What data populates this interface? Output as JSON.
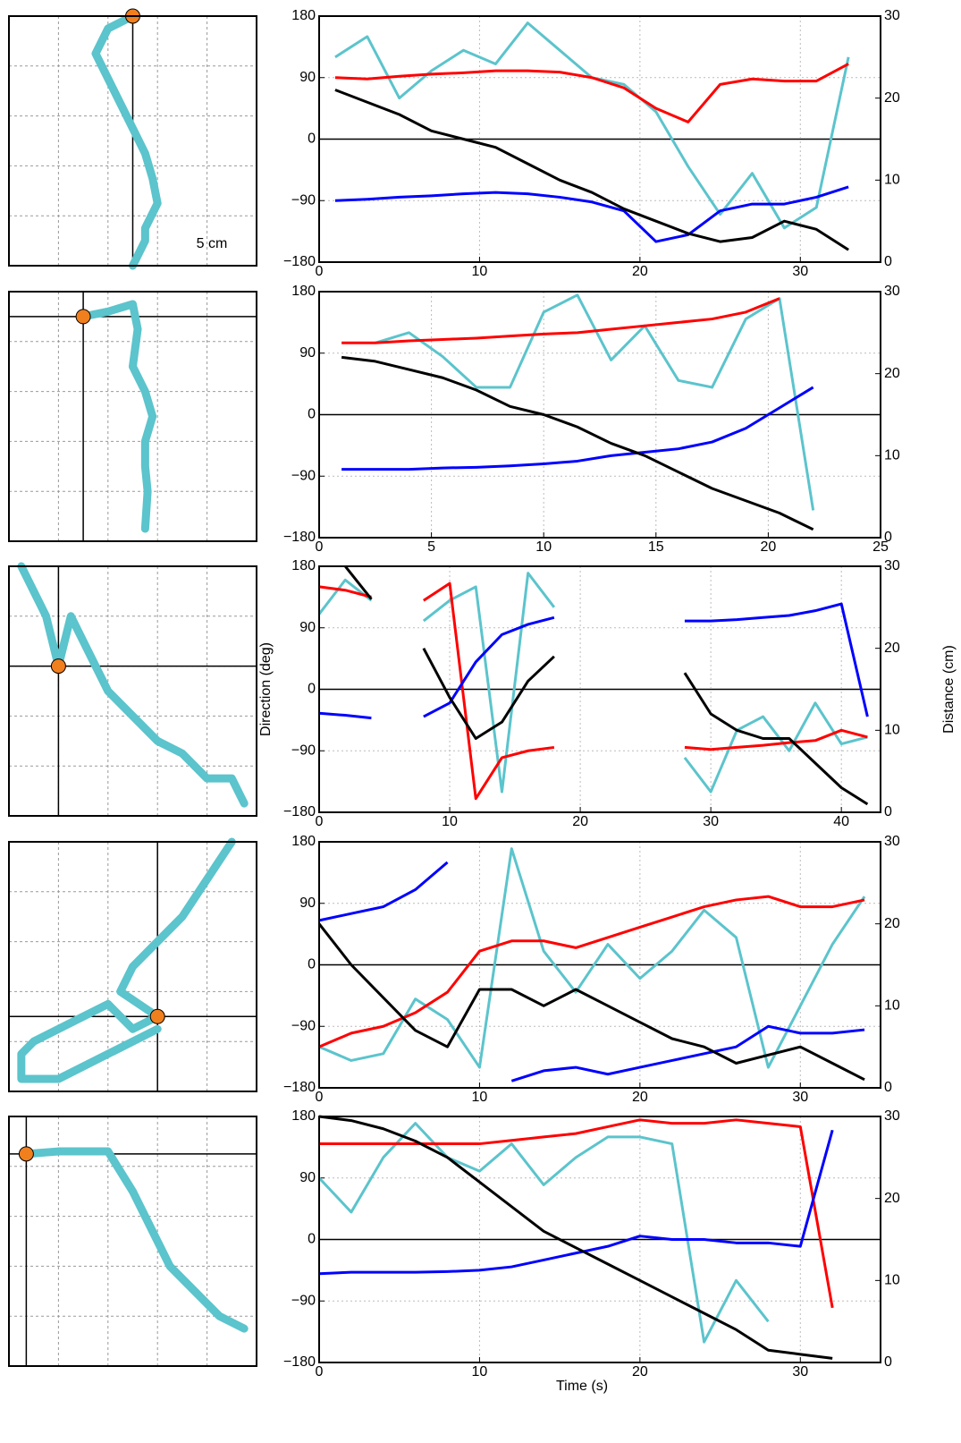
{
  "chart_data": [
    {
      "type": "trajectory",
      "annotation": "5 cm",
      "xlim": [
        0,
        10
      ],
      "ylim": [
        0,
        10
      ],
      "start": [
        5,
        10
      ],
      "color": "#5bc4cc",
      "x": [
        5,
        4,
        3.5,
        4,
        4.5,
        5,
        5.5,
        5.8,
        6,
        5.5,
        5.5,
        5
      ],
      "values": [
        10,
        9.5,
        8.5,
        7.5,
        6.5,
        5.5,
        4.5,
        3.5,
        2.5,
        1.5,
        1,
        0
      ]
    },
    {
      "type": "line",
      "xlim": [
        0,
        35
      ],
      "xticks": [
        0,
        10,
        20,
        30
      ],
      "ylim": [
        -180,
        180
      ],
      "yticks": [
        180,
        90,
        0,
        {
          "value": -90,
          "label": "−90"
        },
        {
          "value": -180,
          "label": "−180"
        }
      ],
      "y2lim": [
        0,
        30
      ],
      "y2ticks": [
        0,
        10,
        20,
        30
      ],
      "grid": true,
      "x": [
        1,
        3,
        5,
        7,
        9,
        11,
        13,
        15,
        17,
        19,
        21,
        23,
        25,
        27,
        29,
        31,
        33
      ],
      "series": [
        {
          "color": "#5bc4cc",
          "values": [
            120,
            150,
            60,
            100,
            130,
            110,
            170,
            130,
            90,
            80,
            40,
            -40,
            -110,
            -50,
            -130,
            -100,
            120
          ]
        },
        {
          "color": "#ff0000",
          "values": [
            90,
            88,
            92,
            95,
            97,
            100,
            100,
            98,
            90,
            75,
            45,
            25,
            80,
            88,
            85,
            85,
            110
          ]
        },
        {
          "color": "#0000ff",
          "values": [
            -90,
            -88,
            -85,
            -83,
            -80,
            -78,
            -80,
            -85,
            -92,
            -105,
            -150,
            -140,
            -105,
            -95,
            -95,
            -85,
            -70
          ]
        },
        {
          "color": "#000000",
          "axis": "y2",
          "values": [
            21,
            19.5,
            18,
            16,
            15,
            14,
            12,
            10,
            8.5,
            6.5,
            5,
            3.5,
            2.5,
            3,
            5,
            4,
            1.5
          ]
        }
      ]
    },
    {
      "type": "trajectory",
      "xlim": [
        0,
        10
      ],
      "ylim": [
        0,
        10
      ],
      "start": [
        3,
        9
      ],
      "color": "#5bc4cc",
      "x": [
        3,
        4,
        5,
        5.2,
        5,
        5.5,
        5.8,
        5.5,
        5.5,
        5.6,
        5.5
      ],
      "values": [
        9,
        9.2,
        9.5,
        8.5,
        7,
        6,
        5,
        4,
        3,
        2,
        0.5
      ]
    },
    {
      "type": "line",
      "xlim": [
        0,
        25
      ],
      "xticks": [
        0,
        5,
        10,
        15,
        20,
        25
      ],
      "ylim": [
        -180,
        180
      ],
      "yticks": [
        180,
        90,
        0,
        {
          "value": -90,
          "label": "−90"
        },
        {
          "value": -180,
          "label": "−180"
        }
      ],
      "y2lim": [
        0,
        30
      ],
      "y2ticks": [
        0,
        10,
        20,
        30
      ],
      "grid": true,
      "x": [
        1,
        2.5,
        4,
        5.5,
        7,
        8.5,
        10,
        11.5,
        13,
        14.5,
        16,
        17.5,
        19,
        20.5,
        22
      ],
      "series": [
        {
          "color": "#5bc4cc",
          "values": [
            null,
            105,
            120,
            85,
            40,
            40,
            150,
            175,
            80,
            130,
            50,
            40,
            140,
            170,
            -140
          ]
        },
        {
          "color": "#ff0000",
          "values": [
            105,
            105,
            108,
            110,
            112,
            115,
            118,
            120,
            125,
            130,
            135,
            140,
            150,
            170,
            null
          ]
        },
        {
          "color": "#0000ff",
          "values": [
            -80,
            -80,
            -80,
            -78,
            -77,
            -75,
            -72,
            -68,
            -60,
            -55,
            -50,
            -40,
            -20,
            10,
            40
          ]
        },
        {
          "color": "#000000",
          "axis": "y2",
          "values": [
            22,
            21.5,
            20.5,
            19.5,
            18,
            16,
            15,
            13.5,
            11.5,
            10,
            8,
            6,
            4.5,
            3,
            1
          ]
        }
      ]
    },
    {
      "type": "trajectory",
      "xlim": [
        0,
        10
      ],
      "ylim": [
        0,
        10
      ],
      "start": [
        2,
        6
      ],
      "color": "#5bc4cc",
      "x": [
        0.5,
        1.5,
        2,
        2.5,
        3,
        4,
        5,
        6,
        7,
        8,
        9,
        9.5
      ],
      "values": [
        10,
        8,
        6,
        8,
        7,
        5,
        4,
        3,
        2.5,
        1.5,
        1.5,
        0.5
      ]
    },
    {
      "type": "line",
      "y_label": "Direction (deg)",
      "y2_label": "Distance (cm)",
      "xlim": [
        0,
        43
      ],
      "xticks": [
        0,
        10,
        20,
        30,
        40
      ],
      "ylim": [
        -180,
        180
      ],
      "yticks": [
        180,
        90,
        0,
        {
          "value": -90,
          "label": "−90"
        },
        {
          "value": -180,
          "label": "−180"
        }
      ],
      "y2lim": [
        0,
        30
      ],
      "y2ticks": [
        0,
        10,
        20,
        30
      ],
      "grid": true,
      "x": [
        0,
        2,
        4,
        6,
        8,
        10,
        12,
        14,
        16,
        18,
        20,
        22,
        24,
        26,
        28,
        30,
        32,
        34,
        36,
        38,
        40,
        42
      ],
      "series": [
        {
          "color": "#5bc4cc",
          "values": [
            110,
            160,
            130,
            null,
            100,
            130,
            150,
            -150,
            170,
            120,
            null,
            null,
            null,
            null,
            -100,
            -150,
            -60,
            -40,
            -90,
            -20,
            -80,
            -70
          ]
        },
        {
          "color": "#ff0000",
          "values": [
            150,
            145,
            135,
            null,
            130,
            155,
            -160,
            -100,
            -90,
            -85,
            null,
            null,
            null,
            null,
            -85,
            -88,
            -85,
            -82,
            -78,
            -75,
            -60,
            -70
          ]
        },
        {
          "color": "#0000ff",
          "values": [
            -35,
            -38,
            -42,
            null,
            -40,
            -20,
            40,
            80,
            95,
            105,
            null,
            null,
            null,
            null,
            100,
            100,
            102,
            105,
            108,
            115,
            125,
            -40
          ]
        },
        {
          "color": "#000000",
          "axis": "y2",
          "values": [
            null,
            30,
            26,
            null,
            20,
            14,
            9,
            11,
            16,
            19,
            null,
            null,
            null,
            null,
            17,
            12,
            10,
            9,
            9,
            6,
            3,
            1
          ]
        }
      ]
    },
    {
      "type": "trajectory",
      "xlim": [
        0,
        10
      ],
      "ylim": [
        0,
        10
      ],
      "start": [
        6,
        3
      ],
      "color": "#5bc4cc",
      "x": [
        9,
        8,
        7,
        6,
        5,
        4.5,
        6,
        5,
        4,
        3,
        1,
        0.5,
        0.5,
        2,
        4,
        6
      ],
      "values": [
        10,
        8.5,
        7,
        6,
        5,
        4,
        3,
        2.5,
        3.5,
        3,
        2,
        1.5,
        0.5,
        0.5,
        1.5,
        2.5
      ]
    },
    {
      "type": "line",
      "xlim": [
        0,
        35
      ],
      "xticks": [
        0,
        10,
        20,
        30
      ],
      "ylim": [
        -180,
        180
      ],
      "yticks": [
        180,
        90,
        0,
        {
          "value": -90,
          "label": "−90"
        },
        {
          "value": -180,
          "label": "−180"
        }
      ],
      "y2lim": [
        0,
        30
      ],
      "y2ticks": [
        0,
        10,
        20,
        30
      ],
      "grid": true,
      "x": [
        0,
        2,
        4,
        6,
        8,
        10,
        12,
        14,
        16,
        18,
        20,
        22,
        24,
        26,
        28,
        30,
        32,
        34
      ],
      "series": [
        {
          "color": "#5bc4cc",
          "values": [
            -120,
            -140,
            -130,
            -50,
            -80,
            -150,
            170,
            20,
            -40,
            30,
            -20,
            20,
            80,
            40,
            -150,
            -60,
            30,
            100
          ]
        },
        {
          "color": "#ff0000",
          "values": [
            -120,
            -100,
            -90,
            -70,
            -40,
            20,
            35,
            35,
            25,
            40,
            55,
            70,
            85,
            95,
            100,
            85,
            85,
            95
          ]
        },
        {
          "color": "#0000ff",
          "values": [
            65,
            75,
            85,
            110,
            150,
            null,
            -170,
            -155,
            -150,
            -160,
            -150,
            -140,
            -130,
            -120,
            -90,
            -100,
            -100,
            -95
          ]
        },
        {
          "color": "#000000",
          "axis": "y2",
          "values": [
            20,
            15,
            11,
            7,
            5,
            12,
            12,
            10,
            12,
            10,
            8,
            6,
            5,
            3,
            4,
            5,
            3,
            1
          ]
        }
      ]
    },
    {
      "type": "trajectory",
      "xlim": [
        0,
        10
      ],
      "ylim": [
        0,
        10
      ],
      "start": [
        0.7,
        8.5
      ],
      "color": "#5bc4cc",
      "x": [
        0.7,
        2,
        4,
        5,
        5.5,
        6,
        6.5,
        7.5,
        8.5,
        9.5
      ],
      "values": [
        8.5,
        8.6,
        8.6,
        7,
        6,
        5,
        4,
        3,
        2,
        1.5
      ]
    },
    {
      "type": "line",
      "x_label": "Time (s)",
      "xlim": [
        0,
        35
      ],
      "xticks": [
        0,
        10,
        20,
        30
      ],
      "ylim": [
        -180,
        180
      ],
      "yticks": [
        180,
        90,
        0,
        {
          "value": -90,
          "label": "−90"
        },
        {
          "value": -180,
          "label": "−180"
        }
      ],
      "y2lim": [
        0,
        30
      ],
      "y2ticks": [
        0,
        10,
        20,
        30
      ],
      "grid": true,
      "x": [
        0,
        2,
        4,
        6,
        8,
        10,
        12,
        14,
        16,
        18,
        20,
        22,
        24,
        26,
        28,
        30,
        32
      ],
      "series": [
        {
          "color": "#5bc4cc",
          "values": [
            90,
            40,
            120,
            170,
            120,
            100,
            140,
            80,
            120,
            150,
            150,
            140,
            -150,
            -60,
            -120,
            null,
            null
          ]
        },
        {
          "color": "#ff0000",
          "values": [
            140,
            140,
            140,
            140,
            140,
            140,
            145,
            150,
            155,
            165,
            175,
            170,
            170,
            175,
            170,
            165,
            -100
          ]
        },
        {
          "color": "#0000ff",
          "values": [
            -50,
            -48,
            -48,
            -48,
            -47,
            -45,
            -40,
            -30,
            -20,
            -10,
            5,
            0,
            0,
            -5,
            -5,
            -10,
            160
          ]
        },
        {
          "color": "#000000",
          "axis": "y2",
          "values": [
            30,
            29.5,
            28.5,
            27,
            25,
            22,
            19,
            16,
            14,
            12,
            10,
            8,
            6,
            4,
            1.5,
            1,
            0.5
          ]
        }
      ]
    }
  ]
}
